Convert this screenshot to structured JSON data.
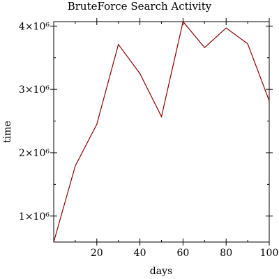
{
  "chart_data": {
    "type": "line",
    "title": "BruteForce Search Activity",
    "xlabel": "days",
    "ylabel": "time",
    "x": [
      0,
      10,
      20,
      30,
      40,
      50,
      60,
      70,
      80,
      90,
      100
    ],
    "series": [
      {
        "values": [
          590000,
          1790000,
          2450000,
          3710000,
          3250000,
          2570000,
          4070000,
          3660000,
          3970000,
          3720000,
          2820000
        ],
        "color": "#8b0000"
      }
    ],
    "xlim": [
      0,
      100
    ],
    "ylim": [
      590000,
      4070000
    ],
    "x_major_ticks": [
      20,
      40,
      60,
      80,
      100
    ],
    "x_minor_ticks": [
      10,
      30,
      50,
      70,
      90
    ],
    "x_tick_labels": [
      "20",
      "40",
      "60",
      "80",
      "100"
    ],
    "y_major_ticks": [
      1000000,
      2000000,
      3000000,
      4000000
    ],
    "y_minor_ticks": [
      1500000,
      2500000,
      3500000
    ],
    "y_tick_labels": [
      "1×10⁶",
      "2×10⁶",
      "3×10⁶",
      "4×10⁶"
    ],
    "grid": false,
    "legend": "none"
  }
}
